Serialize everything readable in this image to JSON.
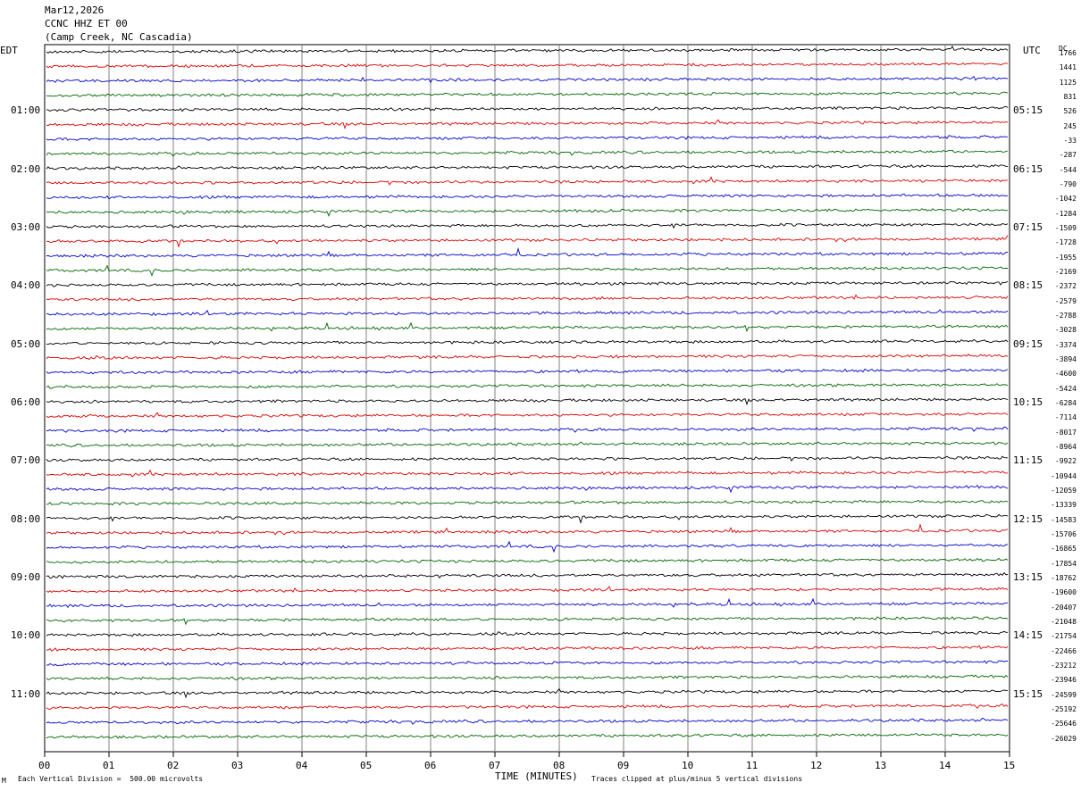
{
  "header": {
    "date": "Mar12,2026",
    "station": "CCNC HHZ ET 00",
    "location": "(Camp Creek, NC Cascadia)"
  },
  "left_timezone": "EDT",
  "right_timezone": "UTC",
  "dc_label": "DC",
  "footer": {
    "scale_note": "Each Vertical Division =  500.00 microvolts",
    "xlabel": "TIME (MINUTES)",
    "clip_note": "Traces clipped at plus/minus 5 vertical divisions",
    "corner_mark": "M"
  },
  "colors": {
    "trace_cycle": [
      "#000000",
      "#dd0000",
      "#0000cc",
      "#006600"
    ],
    "grid": "#808080"
  },
  "chart_data": {
    "type": "line",
    "xlabel": "TIME (MINUTES)",
    "x_ticks": [
      "00",
      "01",
      "02",
      "03",
      "04",
      "05",
      "06",
      "07",
      "08",
      "09",
      "10",
      "11",
      "12",
      "13",
      "14",
      "15"
    ],
    "xlim": [
      0,
      15
    ],
    "left_hour_labels": [
      "01:00",
      "02:00",
      "03:00",
      "04:00",
      "05:00",
      "06:00",
      "07:00",
      "08:00",
      "09:00",
      "10:00",
      "11:00"
    ],
    "right_hour_labels": [
      "05:15",
      "06:15",
      "07:15",
      "08:15",
      "09:15",
      "10:15",
      "11:15",
      "12:15",
      "13:15",
      "14:15",
      "15:15"
    ],
    "dc_offsets": [
      "1766",
      "1441",
      "1125",
      "831",
      "526",
      "245",
      "-33",
      "-287",
      "-544",
      "-790",
      "-1042",
      "-1284",
      "-1509",
      "-1728",
      "-1955",
      "-2169",
      "-2372",
      "-2579",
      "-2788",
      "-3028",
      "-3374",
      "-3894",
      "-4600",
      "-5424",
      "-6284",
      "-7114",
      "-8017",
      "-8964",
      "-9922",
      "-10944",
      "-12059",
      "-13339",
      "-14583",
      "-15706",
      "-16865",
      "-17854",
      "-18762",
      "-19600",
      "-20407",
      "-21048",
      "-21754",
      "-22466",
      "-23212",
      "-23946",
      "-24599",
      "-25192",
      "-25646",
      "-26029"
    ],
    "trace_count": 48,
    "amplitude_note": "Each Vertical Division = 500.00 microvolts"
  }
}
